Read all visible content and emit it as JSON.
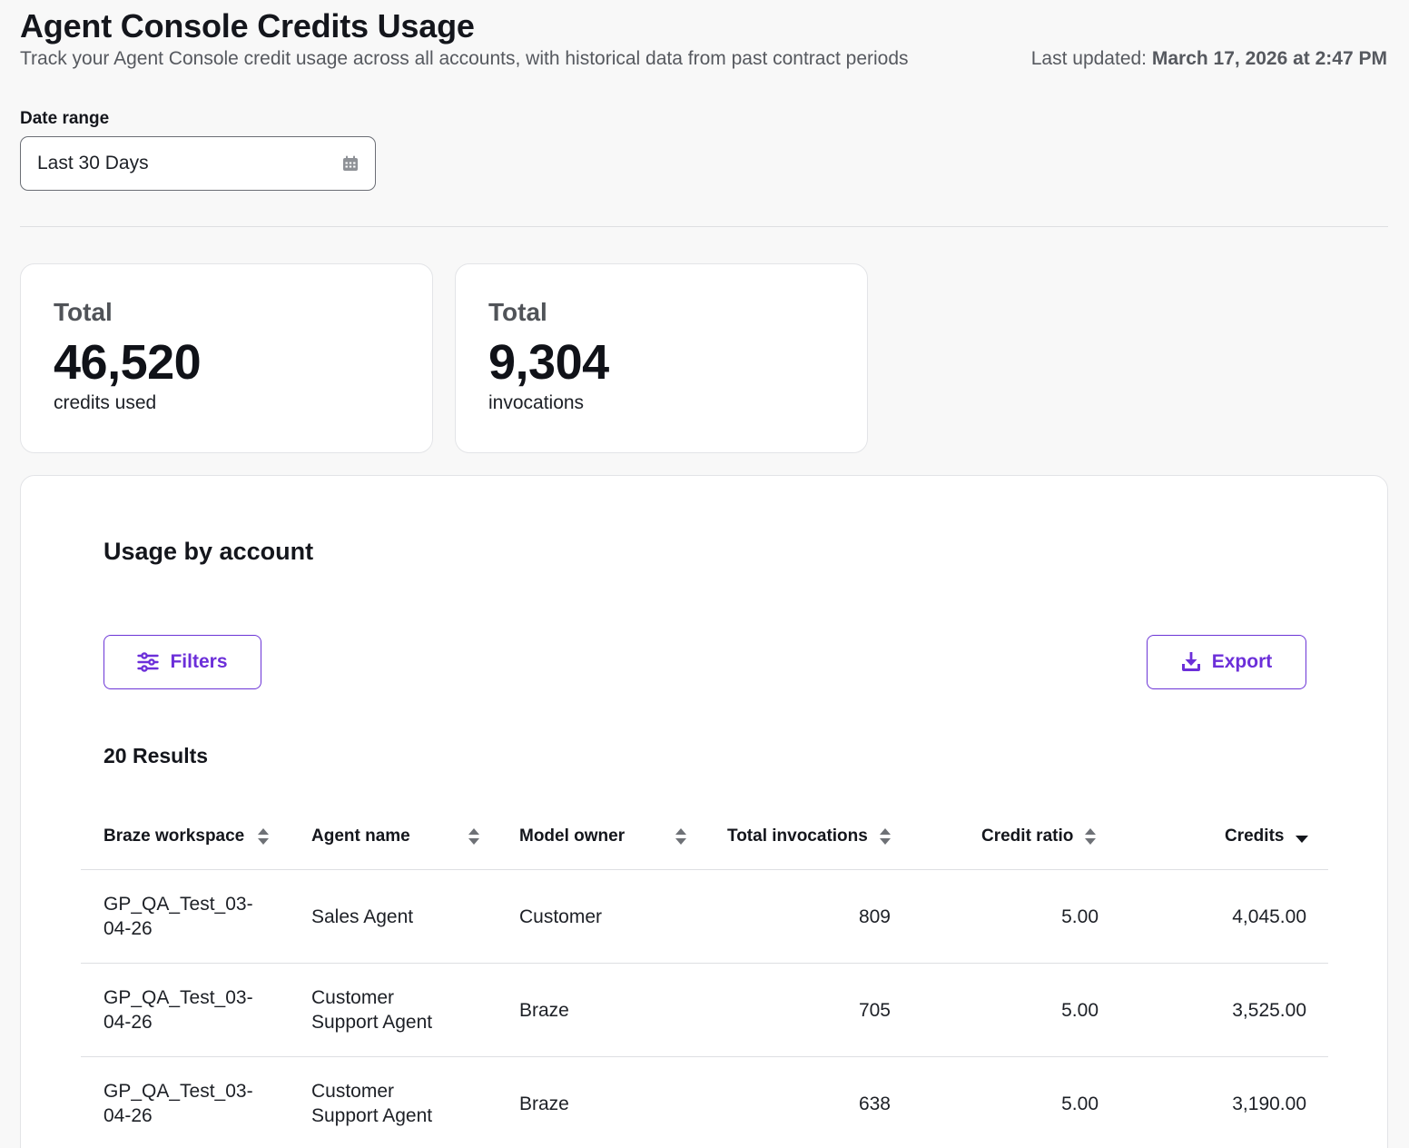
{
  "header": {
    "title": "Agent Console Credits Usage",
    "subtitle": "Track your Agent Console credit usage across all accounts, with historical data from past contract periods",
    "last_updated_label": "Last updated:",
    "last_updated_value": "March 17, 2026 at 2:47 PM"
  },
  "date_range": {
    "label": "Date range",
    "value": "Last 30 Days",
    "icon": "calendar-icon"
  },
  "stats": [
    {
      "label": "Total",
      "value": "46,520",
      "unit": "credits used"
    },
    {
      "label": "Total",
      "value": "9,304",
      "unit": "invocations"
    }
  ],
  "usage": {
    "title": "Usage by account",
    "filters_label": "Filters",
    "export_label": "Export",
    "results_label": "20 Results",
    "columns": [
      {
        "label": "Braze workspace",
        "sort": "both"
      },
      {
        "label": "Agent name",
        "sort": "both"
      },
      {
        "label": "Model owner",
        "sort": "both"
      },
      {
        "label": "Total invocations",
        "sort": "both"
      },
      {
        "label": "Credit ratio",
        "sort": "both"
      },
      {
        "label": "Credits",
        "sort": "desc"
      }
    ],
    "rows": [
      {
        "workspace_line1": "GP_QA_Test_03-",
        "workspace_line2": "04-26",
        "agent_line1": "Sales Agent",
        "agent_line2": "",
        "owner": "Customer",
        "invocations": "809",
        "ratio": "5.00",
        "credits": "4,045.00"
      },
      {
        "workspace_line1": "GP_QA_Test_03-",
        "workspace_line2": "04-26",
        "agent_line1": "Customer",
        "agent_line2": "Support Agent",
        "owner": "Braze",
        "invocations": "705",
        "ratio": "5.00",
        "credits": "3,525.00"
      },
      {
        "workspace_line1": "GP_QA_Test_03-",
        "workspace_line2": "04-26",
        "agent_line1": "Customer",
        "agent_line2": "Support Agent",
        "owner": "Braze",
        "invocations": "638",
        "ratio": "5.00",
        "credits": "3,190.00"
      }
    ]
  },
  "colors": {
    "accent": "#6c2fd9",
    "background": "#f8f8f8",
    "card": "#ffffff"
  }
}
